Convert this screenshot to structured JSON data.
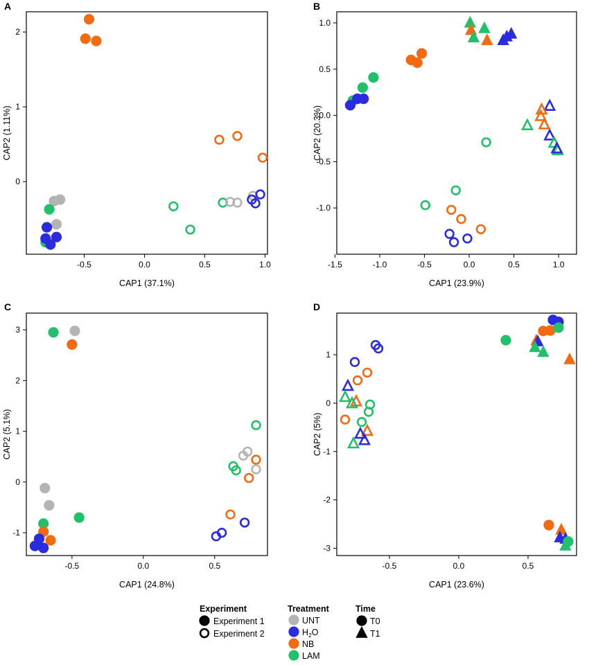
{
  "colors": {
    "UNT": "#b4b4b4",
    "H2O": "#2b2be0",
    "NB": "#f26a11",
    "LAM": "#22c06a"
  },
  "legend": {
    "experiment": {
      "title": "Experiment",
      "items": [
        {
          "label": "Experiment 1",
          "filled": true
        },
        {
          "label": "Experiment 2",
          "filled": false
        }
      ]
    },
    "treatment": {
      "title": "Treatment",
      "items": [
        {
          "key": "UNT",
          "label": "UNT",
          "sub": ""
        },
        {
          "key": "H2O",
          "label": "H",
          "sub": "2",
          "post": "O"
        },
        {
          "key": "NB",
          "label": "NB",
          "sub": ""
        },
        {
          "key": "LAM",
          "label": "LAM",
          "sub": ""
        }
      ]
    },
    "time": {
      "title": "Time",
      "items": [
        {
          "label": "T0",
          "shape": "circle"
        },
        {
          "label": "T1",
          "shape": "triangle"
        }
      ]
    }
  },
  "chart_data": [
    {
      "panel": "A",
      "type": "scatter",
      "xlabel": "CAP1 (37.1%)",
      "ylabel": "CAP2 (1.11%)",
      "xlim": [
        -0.98,
        1.02
      ],
      "ylim": [
        -0.97,
        2.27
      ],
      "xticks": [
        -0.5,
        0.0,
        0.5,
        1.0
      ],
      "xticklabels": [
        "-0.5",
        "0.0",
        "0.5",
        "1.0"
      ],
      "yticks": [
        0,
        1,
        2
      ],
      "yticklabels": [
        "0",
        "1",
        "2"
      ],
      "points": [
        {
          "x": -0.46,
          "y": 2.17,
          "t": "NB",
          "e": 1,
          "s": 0
        },
        {
          "x": -0.49,
          "y": 1.91,
          "t": "NB",
          "e": 1,
          "s": 0
        },
        {
          "x": -0.4,
          "y": 1.88,
          "t": "NB",
          "e": 1,
          "s": 0
        },
        {
          "x": -0.75,
          "y": -0.26,
          "t": "UNT",
          "e": 1,
          "s": 0
        },
        {
          "x": -0.7,
          "y": -0.24,
          "t": "UNT",
          "e": 1,
          "s": 0
        },
        {
          "x": -0.73,
          "y": -0.57,
          "t": "UNT",
          "e": 1,
          "s": 0
        },
        {
          "x": -0.79,
          "y": -0.37,
          "t": "LAM",
          "e": 1,
          "s": 0
        },
        {
          "x": -0.82,
          "y": -0.81,
          "t": "LAM",
          "e": 1,
          "s": 0
        },
        {
          "x": -0.81,
          "y": -0.61,
          "t": "H2O",
          "e": 1,
          "s": 0
        },
        {
          "x": -0.82,
          "y": -0.76,
          "t": "H2O",
          "e": 1,
          "s": 0
        },
        {
          "x": -0.78,
          "y": -0.84,
          "t": "H2O",
          "e": 1,
          "s": 0
        },
        {
          "x": -0.73,
          "y": -0.74,
          "t": "H2O",
          "e": 1,
          "s": 0
        },
        {
          "x": 0.62,
          "y": 0.56,
          "t": "NB",
          "e": 2,
          "s": 0
        },
        {
          "x": 0.77,
          "y": 0.61,
          "t": "NB",
          "e": 2,
          "s": 0
        },
        {
          "x": 0.98,
          "y": 0.32,
          "t": "NB",
          "e": 2,
          "s": 0
        },
        {
          "x": 0.24,
          "y": -0.33,
          "t": "LAM",
          "e": 2,
          "s": 0
        },
        {
          "x": 0.38,
          "y": -0.64,
          "t": "LAM",
          "e": 2,
          "s": 0
        },
        {
          "x": 0.65,
          "y": -0.28,
          "t": "LAM",
          "e": 2,
          "s": 0
        },
        {
          "x": 0.71,
          "y": -0.27,
          "t": "UNT",
          "e": 2,
          "s": 0
        },
        {
          "x": 0.77,
          "y": -0.28,
          "t": "UNT",
          "e": 2,
          "s": 0
        },
        {
          "x": 0.9,
          "y": -0.19,
          "t": "UNT",
          "e": 2,
          "s": 0
        },
        {
          "x": 0.89,
          "y": -0.24,
          "t": "H2O",
          "e": 2,
          "s": 0
        },
        {
          "x": 0.92,
          "y": -0.29,
          "t": "H2O",
          "e": 2,
          "s": 0
        },
        {
          "x": 0.96,
          "y": -0.17,
          "t": "H2O",
          "e": 2,
          "s": 0
        }
      ]
    },
    {
      "panel": "B",
      "type": "scatter",
      "xlabel": "CAP1 (23.9%)",
      "ylabel": "CAP2 (20.3%)",
      "xlim": [
        -1.48,
        1.2
      ],
      "ylim": [
        -1.5,
        1.12
      ],
      "xticks": [
        -1.5,
        -1.0,
        -0.5,
        0.0,
        0.5,
        1.0
      ],
      "xticklabels": [
        "-1.5",
        "-1.0",
        "-0.5",
        "0.0",
        "0.5",
        "1.0"
      ],
      "yticks": [
        1.0,
        0.5,
        0.0,
        -0.5,
        -1.0
      ],
      "yticklabels": [
        "1.0",
        "0.5",
        "0.0",
        "-0.5",
        "-1.0"
      ],
      "points": [
        {
          "x": 0.01,
          "y": 1.0,
          "t": "LAM",
          "e": 1,
          "s": 1
        },
        {
          "x": 0.02,
          "y": 0.92,
          "t": "NB",
          "e": 1,
          "s": 1
        },
        {
          "x": 0.05,
          "y": 0.84,
          "t": "LAM",
          "e": 1,
          "s": 1
        },
        {
          "x": 0.17,
          "y": 0.94,
          "t": "LAM",
          "e": 1,
          "s": 1
        },
        {
          "x": 0.2,
          "y": 0.81,
          "t": "NB",
          "e": 1,
          "s": 1
        },
        {
          "x": 0.38,
          "y": 0.81,
          "t": "H2O",
          "e": 1,
          "s": 1
        },
        {
          "x": 0.42,
          "y": 0.85,
          "t": "H2O",
          "e": 1,
          "s": 1
        },
        {
          "x": 0.47,
          "y": 0.88,
          "t": "H2O",
          "e": 1,
          "s": 1
        },
        {
          "x": -0.65,
          "y": 0.6,
          "t": "NB",
          "e": 1,
          "s": 0
        },
        {
          "x": -0.58,
          "y": 0.57,
          "t": "NB",
          "e": 1,
          "s": 0
        },
        {
          "x": -0.53,
          "y": 0.67,
          "t": "NB",
          "e": 1,
          "s": 0
        },
        {
          "x": -1.07,
          "y": 0.41,
          "t": "LAM",
          "e": 1,
          "s": 0
        },
        {
          "x": -1.19,
          "y": 0.3,
          "t": "LAM",
          "e": 1,
          "s": 0
        },
        {
          "x": -1.3,
          "y": 0.16,
          "t": "LAM",
          "e": 1,
          "s": 0
        },
        {
          "x": -1.33,
          "y": 0.11,
          "t": "H2O",
          "e": 1,
          "s": 0
        },
        {
          "x": -1.25,
          "y": 0.18,
          "t": "H2O",
          "e": 1,
          "s": 0
        },
        {
          "x": -1.18,
          "y": 0.18,
          "t": "H2O",
          "e": 1,
          "s": 0
        },
        {
          "x": 0.9,
          "y": 0.1,
          "t": "H2O",
          "e": 2,
          "s": 1
        },
        {
          "x": 0.81,
          "y": 0.06,
          "t": "NB",
          "e": 2,
          "s": 1
        },
        {
          "x": 0.8,
          "y": -0.01,
          "t": "NB",
          "e": 2,
          "s": 1
        },
        {
          "x": 0.84,
          "y": -0.1,
          "t": "NB",
          "e": 2,
          "s": 1
        },
        {
          "x": 0.65,
          "y": -0.11,
          "t": "LAM",
          "e": 2,
          "s": 1
        },
        {
          "x": 0.9,
          "y": -0.22,
          "t": "H2O",
          "e": 2,
          "s": 1
        },
        {
          "x": 0.95,
          "y": -0.3,
          "t": "LAM",
          "e": 2,
          "s": 1
        },
        {
          "x": 0.99,
          "y": -0.38,
          "t": "LAM",
          "e": 2,
          "s": 1
        },
        {
          "x": 0.98,
          "y": -0.36,
          "t": "H2O",
          "e": 2,
          "s": 1
        },
        {
          "x": 0.19,
          "y": -0.29,
          "t": "LAM",
          "e": 2,
          "s": 0
        },
        {
          "x": -0.15,
          "y": -0.81,
          "t": "LAM",
          "e": 2,
          "s": 0
        },
        {
          "x": -0.49,
          "y": -0.97,
          "t": "LAM",
          "e": 2,
          "s": 0
        },
        {
          "x": -0.2,
          "y": -1.02,
          "t": "NB",
          "e": 2,
          "s": 0
        },
        {
          "x": -0.09,
          "y": -1.12,
          "t": "NB",
          "e": 2,
          "s": 0
        },
        {
          "x": 0.13,
          "y": -1.23,
          "t": "NB",
          "e": 2,
          "s": 0
        },
        {
          "x": -0.22,
          "y": -1.28,
          "t": "H2O",
          "e": 2,
          "s": 0
        },
        {
          "x": -0.17,
          "y": -1.37,
          "t": "H2O",
          "e": 2,
          "s": 0
        },
        {
          "x": -0.02,
          "y": -1.33,
          "t": "H2O",
          "e": 2,
          "s": 0
        }
      ]
    },
    {
      "panel": "C",
      "type": "scatter",
      "xlabel": "CAP1 (24.8%)",
      "ylabel": "CAP2 (5.1%)",
      "xlim": [
        -0.82,
        0.87
      ],
      "ylim": [
        -1.45,
        3.33
      ],
      "xticks": [
        -0.5,
        0.0,
        0.5
      ],
      "xticklabels": [
        "-0.5",
        "0.0",
        "0.5"
      ],
      "yticks": [
        3,
        2,
        1,
        0,
        -1
      ],
      "yticklabels": [
        "3",
        "2",
        "1",
        "0",
        "-1"
      ],
      "points": [
        {
          "x": -0.63,
          "y": 2.95,
          "t": "LAM",
          "e": 1,
          "s": 0
        },
        {
          "x": -0.48,
          "y": 2.98,
          "t": "UNT",
          "e": 1,
          "s": 0
        },
        {
          "x": -0.5,
          "y": 2.71,
          "t": "NB",
          "e": 1,
          "s": 0
        },
        {
          "x": -0.69,
          "y": -0.12,
          "t": "UNT",
          "e": 1,
          "s": 0
        },
        {
          "x": -0.66,
          "y": -0.46,
          "t": "UNT",
          "e": 1,
          "s": 0
        },
        {
          "x": -0.7,
          "y": -0.82,
          "t": "LAM",
          "e": 1,
          "s": 0
        },
        {
          "x": -0.45,
          "y": -0.7,
          "t": "LAM",
          "e": 1,
          "s": 0
        },
        {
          "x": -0.7,
          "y": -0.98,
          "t": "NB",
          "e": 1,
          "s": 0
        },
        {
          "x": -0.65,
          "y": -1.15,
          "t": "NB",
          "e": 1,
          "s": 0
        },
        {
          "x": -0.73,
          "y": -1.12,
          "t": "H2O",
          "e": 1,
          "s": 0
        },
        {
          "x": -0.76,
          "y": -1.26,
          "t": "H2O",
          "e": 1,
          "s": 0
        },
        {
          "x": -0.7,
          "y": -1.3,
          "t": "H2O",
          "e": 1,
          "s": 0
        },
        {
          "x": 0.79,
          "y": 1.12,
          "t": "LAM",
          "e": 2,
          "s": 0
        },
        {
          "x": 0.73,
          "y": 0.6,
          "t": "UNT",
          "e": 2,
          "s": 0
        },
        {
          "x": 0.7,
          "y": 0.52,
          "t": "UNT",
          "e": 2,
          "s": 0
        },
        {
          "x": 0.63,
          "y": 0.31,
          "t": "LAM",
          "e": 2,
          "s": 0
        },
        {
          "x": 0.65,
          "y": 0.23,
          "t": "LAM",
          "e": 2,
          "s": 0
        },
        {
          "x": 0.79,
          "y": 0.44,
          "t": "NB",
          "e": 2,
          "s": 0
        },
        {
          "x": 0.79,
          "y": 0.25,
          "t": "UNT",
          "e": 2,
          "s": 0
        },
        {
          "x": 0.74,
          "y": 0.08,
          "t": "NB",
          "e": 2,
          "s": 0
        },
        {
          "x": 0.61,
          "y": -0.64,
          "t": "NB",
          "e": 2,
          "s": 0
        },
        {
          "x": 0.71,
          "y": -0.8,
          "t": "H2O",
          "e": 2,
          "s": 0
        },
        {
          "x": 0.55,
          "y": -1.0,
          "t": "H2O",
          "e": 2,
          "s": 0
        },
        {
          "x": 0.51,
          "y": -1.07,
          "t": "H2O",
          "e": 2,
          "s": 0
        }
      ]
    },
    {
      "panel": "D",
      "type": "scatter",
      "xlabel": "CAP1 (23.6%)",
      "ylabel": "CAP2 (5%)",
      "xlim": [
        -0.88,
        0.85
      ],
      "ylim": [
        -3.15,
        1.86
      ],
      "xticks": [
        -0.5,
        0.0,
        0.5
      ],
      "xticklabels": [
        "-0.5",
        "0.0",
        "0.5"
      ],
      "yticks": [
        1,
        0,
        -1,
        -2,
        -3
      ],
      "yticklabels": [
        "1",
        "0",
        "-1",
        "-2",
        "-3"
      ],
      "points": [
        {
          "x": 0.68,
          "y": 1.72,
          "t": "H2O",
          "e": 1,
          "s": 0
        },
        {
          "x": 0.72,
          "y": 1.68,
          "t": "H2O",
          "e": 1,
          "s": 0
        },
        {
          "x": 0.61,
          "y": 1.49,
          "t": "NB",
          "e": 1,
          "s": 0
        },
        {
          "x": 0.66,
          "y": 1.5,
          "t": "NB",
          "e": 1,
          "s": 0
        },
        {
          "x": 0.72,
          "y": 1.56,
          "t": "LAM",
          "e": 1,
          "s": 0
        },
        {
          "x": 0.34,
          "y": 1.3,
          "t": "LAM",
          "e": 1,
          "s": 0
        },
        {
          "x": 0.56,
          "y": 1.29,
          "t": "NB",
          "e": 1,
          "s": 1
        },
        {
          "x": 0.57,
          "y": 1.27,
          "t": "H2O",
          "e": 1,
          "s": 1
        },
        {
          "x": 0.55,
          "y": 1.15,
          "t": "LAM",
          "e": 1,
          "s": 1
        },
        {
          "x": 0.61,
          "y": 1.05,
          "t": "LAM",
          "e": 1,
          "s": 1
        },
        {
          "x": 0.8,
          "y": 0.9,
          "t": "NB",
          "e": 1,
          "s": 1
        },
        {
          "x": 0.65,
          "y": -2.52,
          "t": "NB",
          "e": 1,
          "s": 0
        },
        {
          "x": 0.74,
          "y": -2.62,
          "t": "NB",
          "e": 1,
          "s": 1
        },
        {
          "x": 0.73,
          "y": -2.78,
          "t": "H2O",
          "e": 1,
          "s": 1
        },
        {
          "x": 0.77,
          "y": -2.81,
          "t": "H2O",
          "e": 1,
          "s": 1
        },
        {
          "x": 0.79,
          "y": -2.86,
          "t": "LAM",
          "e": 1,
          "s": 0
        },
        {
          "x": 0.77,
          "y": -2.95,
          "t": "LAM",
          "e": 1,
          "s": 1
        },
        {
          "x": -0.6,
          "y": 1.2,
          "t": "H2O",
          "e": 2,
          "s": 0
        },
        {
          "x": -0.58,
          "y": 1.13,
          "t": "H2O",
          "e": 2,
          "s": 0
        },
        {
          "x": -0.75,
          "y": 0.85,
          "t": "H2O",
          "e": 2,
          "s": 0
        },
        {
          "x": -0.66,
          "y": 0.63,
          "t": "NB",
          "e": 2,
          "s": 0
        },
        {
          "x": -0.73,
          "y": 0.47,
          "t": "NB",
          "e": 2,
          "s": 0
        },
        {
          "x": -0.8,
          "y": 0.35,
          "t": "H2O",
          "e": 2,
          "s": 1
        },
        {
          "x": -0.82,
          "y": 0.12,
          "t": "LAM",
          "e": 2,
          "s": 1
        },
        {
          "x": -0.74,
          "y": 0.03,
          "t": "NB",
          "e": 2,
          "s": 1
        },
        {
          "x": -0.77,
          "y": -0.01,
          "t": "LAM",
          "e": 2,
          "s": 1
        },
        {
          "x": -0.64,
          "y": -0.03,
          "t": "LAM",
          "e": 2,
          "s": 0
        },
        {
          "x": -0.65,
          "y": -0.18,
          "t": "LAM",
          "e": 2,
          "s": 0
        },
        {
          "x": -0.82,
          "y": -0.34,
          "t": "NB",
          "e": 2,
          "s": 0
        },
        {
          "x": -0.7,
          "y": -0.39,
          "t": "LAM",
          "e": 2,
          "s": 0
        },
        {
          "x": -0.66,
          "y": -0.58,
          "t": "NB",
          "e": 2,
          "s": 1
        },
        {
          "x": -0.71,
          "y": -0.64,
          "t": "H2O",
          "e": 2,
          "s": 1
        },
        {
          "x": -0.68,
          "y": -0.77,
          "t": "H2O",
          "e": 2,
          "s": 1
        },
        {
          "x": -0.76,
          "y": -0.84,
          "t": "LAM",
          "e": 2,
          "s": 1
        }
      ]
    }
  ]
}
